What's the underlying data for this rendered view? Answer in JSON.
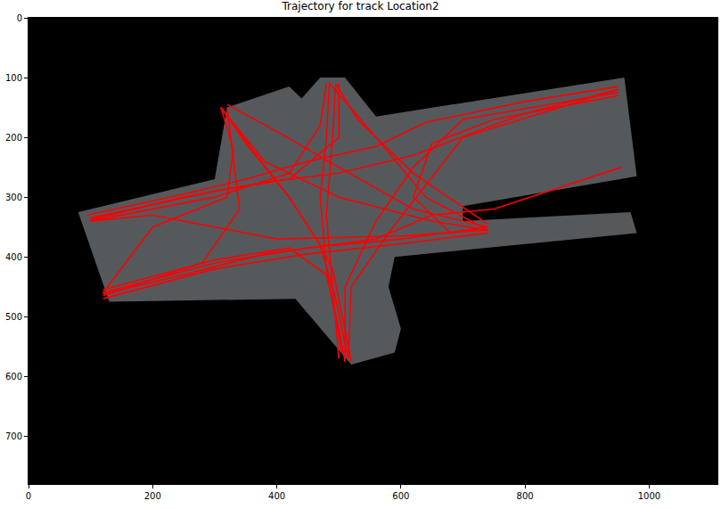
{
  "chart_data": {
    "type": "line",
    "title": "Trajectory for track Location2",
    "color": "#ff0000",
    "xlim": [
      0,
      1110
    ],
    "ylim": [
      780,
      0
    ],
    "xticks": [
      0,
      200,
      400,
      600,
      800,
      1000
    ],
    "yticks": [
      0,
      100,
      200,
      300,
      400,
      500,
      600,
      700
    ],
    "grid": false,
    "image_area": {
      "color": "#55595c",
      "x": [
        80,
        300,
        320,
        420,
        440,
        470,
        510,
        560,
        960,
        980,
        700,
        700,
        970,
        980,
        590,
        580,
        600,
        590,
        520,
        430,
        130,
        80
      ],
      "y": [
        325,
        270,
        150,
        115,
        135,
        100,
        100,
        165,
        100,
        265,
        315,
        340,
        325,
        360,
        400,
        450,
        520,
        560,
        580,
        470,
        475,
        325
      ]
    },
    "tracks": [
      {
        "x": [
          100,
          250,
          380,
          500,
          620,
          800,
          950
        ],
        "y": [
          338,
          300,
          275,
          260,
          230,
          160,
          120
        ]
      },
      {
        "x": [
          950,
          800,
          640,
          560,
          450,
          350,
          250,
          95
        ],
        "y": [
          115,
          140,
          175,
          215,
          240,
          270,
          295,
          330
        ]
      },
      {
        "x": [
          120,
          300,
          450,
          600,
          740
        ],
        "y": [
          460,
          410,
          385,
          370,
          350
        ]
      },
      {
        "x": [
          740,
          600,
          450,
          300,
          120
        ],
        "y": [
          360,
          378,
          395,
          420,
          470
        ]
      },
      {
        "x": [
          120,
          300,
          420,
          480,
          500,
          510
        ],
        "y": [
          455,
          405,
          385,
          430,
          520,
          575
        ]
      },
      {
        "x": [
          520,
          505,
          490,
          470,
          420,
          360,
          310
        ],
        "y": [
          575,
          500,
          420,
          380,
          300,
          220,
          150
        ]
      },
      {
        "x": [
          310,
          350,
          420,
          470,
          495,
          515
        ],
        "y": [
          150,
          210,
          300,
          380,
          470,
          570
        ]
      },
      {
        "x": [
          485,
          480,
          470,
          480,
          505
        ],
        "y": [
          108,
          200,
          300,
          420,
          560
        ]
      },
      {
        "x": [
          500,
          490,
          480,
          490,
          495
        ],
        "y": [
          570,
          450,
          330,
          200,
          110
        ]
      },
      {
        "x": [
          480,
          470,
          420,
          300,
          100
        ],
        "y": [
          110,
          180,
          260,
          300,
          340
        ]
      },
      {
        "x": [
          100,
          300,
          420,
          500,
          500
        ],
        "y": [
          335,
          290,
          270,
          200,
          110
        ]
      },
      {
        "x": [
          310,
          380,
          500,
          650,
          740
        ],
        "y": [
          150,
          240,
          300,
          340,
          355
        ]
      },
      {
        "x": [
          740,
          620,
          500,
          400,
          320
        ],
        "y": [
          350,
          320,
          250,
          190,
          145
        ]
      },
      {
        "x": [
          950,
          700,
          620,
          560,
          510,
          510
        ],
        "y": [
          125,
          170,
          250,
          340,
          450,
          575
        ]
      },
      {
        "x": [
          515,
          520,
          580,
          700,
          950
        ],
        "y": [
          570,
          450,
          360,
          200,
          120
        ]
      },
      {
        "x": [
          485,
          560,
          640,
          740
        ],
        "y": [
          110,
          200,
          300,
          355
        ]
      },
      {
        "x": [
          740,
          620,
          530,
          495
        ],
        "y": [
          345,
          260,
          170,
          110
        ]
      },
      {
        "x": [
          120,
          250,
          380,
          560,
          650,
          750,
          955
        ],
        "y": [
          462,
          430,
          395,
          370,
          330,
          320,
          250
        ]
      },
      {
        "x": [
          310,
          330,
          320,
          200,
          120
        ],
        "y": [
          150,
          220,
          300,
          350,
          460
        ]
      },
      {
        "x": [
          120,
          280,
          340,
          320
        ],
        "y": [
          465,
          410,
          320,
          150
        ]
      },
      {
        "x": [
          950,
          750,
          650,
          620,
          680,
          740
        ],
        "y": [
          130,
          170,
          210,
          300,
          360,
          350
        ]
      },
      {
        "x": [
          100,
          200,
          400,
          600,
          740
        ],
        "y": [
          340,
          330,
          370,
          365,
          355
        ]
      }
    ]
  }
}
